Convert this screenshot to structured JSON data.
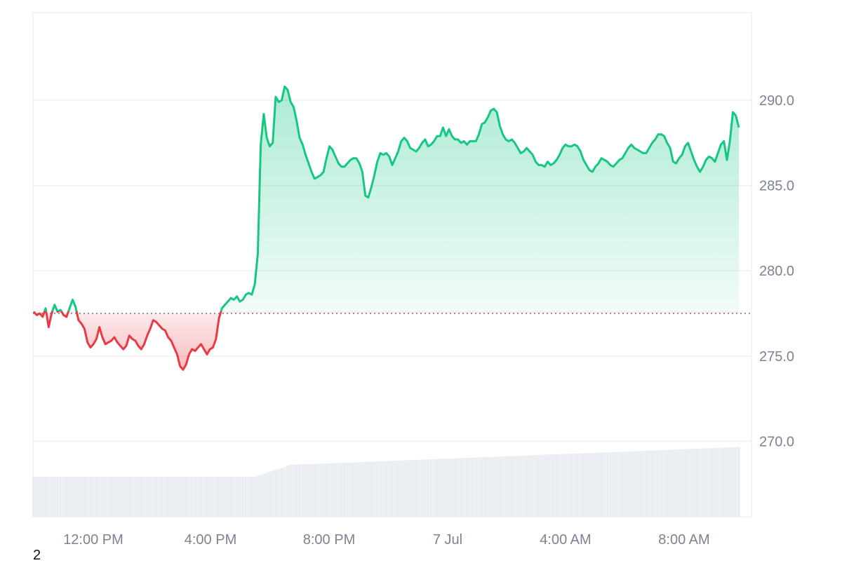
{
  "footnote": "2",
  "chart_data": {
    "type": "area",
    "baseline": 277.5,
    "ylim": [
      265,
      295
    ],
    "y_ticks": [
      "290.0",
      "285.0",
      "280.0",
      "275.0",
      "270.0"
    ],
    "x_ticks": [
      "12:00 PM",
      "4:00 PM",
      "8:00 PM",
      "7 Jul",
      "4:00 AM",
      "8:00 AM"
    ],
    "grid": true,
    "colors": {
      "up": "#16c784",
      "down": "#ea3943",
      "volume": "#eaedf2",
      "grid": "#eef0f3",
      "axis_text": "#7b8291"
    },
    "series": [
      {
        "values": [
          277.6,
          277.4,
          277.5,
          277.3,
          277.8,
          276.7,
          277.5,
          278.0,
          277.6,
          277.7,
          277.4,
          277.3,
          277.8,
          278.3,
          277.9,
          277.1,
          276.9,
          276.6,
          275.8,
          275.5,
          275.7,
          276.0,
          276.7,
          276.1,
          275.7,
          275.8,
          275.9,
          276.1,
          275.8,
          275.6,
          275.4,
          275.6,
          276.2,
          276.0,
          275.9,
          275.6,
          275.4,
          275.7,
          276.2,
          276.6,
          277.1,
          277.0,
          276.8,
          276.6,
          276.5,
          276.1,
          275.9,
          275.5,
          275.1,
          274.4,
          274.2,
          274.5,
          275.1,
          275.4,
          275.3,
          275.5,
          275.7,
          275.4,
          275.1,
          275.4,
          275.5,
          276.0,
          277.2,
          277.8,
          278.0,
          278.2,
          278.4,
          278.3,
          278.5,
          278.2,
          278.3,
          278.6,
          278.7,
          278.6,
          279.2,
          281.0,
          287.4,
          289.2,
          287.8,
          287.3,
          287.5,
          290.2,
          289.9,
          290.0,
          290.8,
          290.6,
          289.9,
          289.6,
          288.8,
          287.8,
          287.4,
          286.8,
          286.3,
          285.8,
          285.4,
          285.5,
          285.6,
          285.8,
          286.6,
          287.3,
          287.1,
          286.7,
          286.3,
          286.1,
          286.1,
          286.3,
          286.5,
          286.6,
          286.6,
          286.3,
          285.8,
          284.4,
          284.3,
          284.9,
          285.6,
          286.4,
          286.9,
          286.8,
          286.9,
          286.7,
          286.2,
          286.6,
          287.0,
          287.6,
          287.8,
          287.6,
          287.2,
          287.1,
          287.0,
          287.2,
          287.5,
          287.7,
          287.3,
          287.4,
          287.6,
          287.9,
          287.9,
          288.4,
          287.9,
          288.3,
          287.9,
          287.7,
          287.7,
          287.5,
          287.6,
          287.4,
          287.6,
          287.6,
          287.6,
          288.0,
          288.6,
          288.7,
          289.0,
          289.4,
          289.5,
          289.3,
          288.5,
          288.0,
          287.7,
          287.6,
          287.7,
          287.5,
          287.2,
          286.9,
          287.0,
          287.2,
          287.0,
          286.8,
          286.4,
          286.2,
          286.2,
          286.1,
          286.4,
          286.2,
          286.3,
          286.5,
          286.8,
          287.2,
          287.4,
          287.3,
          287.3,
          287.4,
          287.3,
          287.0,
          286.5,
          286.2,
          285.9,
          285.8,
          286.1,
          286.3,
          286.6,
          286.5,
          286.4,
          286.2,
          286.1,
          286.3,
          286.5,
          286.6,
          286.9,
          287.2,
          287.4,
          287.2,
          287.1,
          287.0,
          286.9,
          286.9,
          287.2,
          287.5,
          287.7,
          288.0,
          288.0,
          287.9,
          287.5,
          287.2,
          286.4,
          286.3,
          286.6,
          286.8,
          287.3,
          287.5,
          287.0,
          286.5,
          286.1,
          285.8,
          286.1,
          286.5,
          286.7,
          286.6,
          286.4,
          286.9,
          287.4,
          287.6,
          286.5,
          287.6,
          289.3,
          289.1,
          288.4
        ]
      }
    ]
  }
}
